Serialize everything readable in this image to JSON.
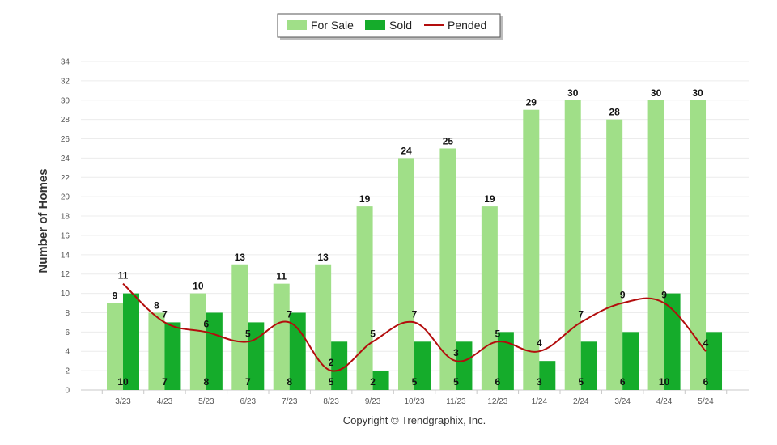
{
  "chart_data": {
    "type": "bar",
    "categories": [
      "3/23",
      "4/23",
      "5/23",
      "6/23",
      "7/23",
      "8/23",
      "9/23",
      "10/23",
      "11/23",
      "12/23",
      "1/24",
      "2/24",
      "3/24",
      "4/24",
      "5/24"
    ],
    "series": [
      {
        "name": "For Sale",
        "kind": "bar",
        "color": "#a0df88",
        "values": [
          9,
          8,
          10,
          13,
          11,
          13,
          19,
          24,
          25,
          19,
          29,
          30,
          28,
          30,
          30
        ]
      },
      {
        "name": "Sold",
        "kind": "bar",
        "color": "#15ac2b",
        "values": [
          10,
          7,
          8,
          7,
          8,
          5,
          2,
          5,
          5,
          6,
          3,
          5,
          6,
          10,
          6
        ]
      },
      {
        "name": "Pended",
        "kind": "line",
        "color": "#b30d0d",
        "values": [
          11,
          7,
          6,
          5,
          7,
          2,
          5,
          7,
          3,
          5,
          4,
          7,
          9,
          9,
          4
        ]
      }
    ],
    "ylabel": "Number of Homes",
    "xlabel": "",
    "ylim": [
      0,
      34
    ],
    "yticks": [
      "0",
      "2",
      "4",
      "6",
      "8",
      "10",
      "12",
      "14",
      "16",
      "18",
      "20",
      "22",
      "24",
      "26",
      "28",
      "30",
      "32",
      "34"
    ],
    "grid": true,
    "legend_position": "top-center"
  },
  "copyright": "Copyright © Trendgraphix, Inc."
}
